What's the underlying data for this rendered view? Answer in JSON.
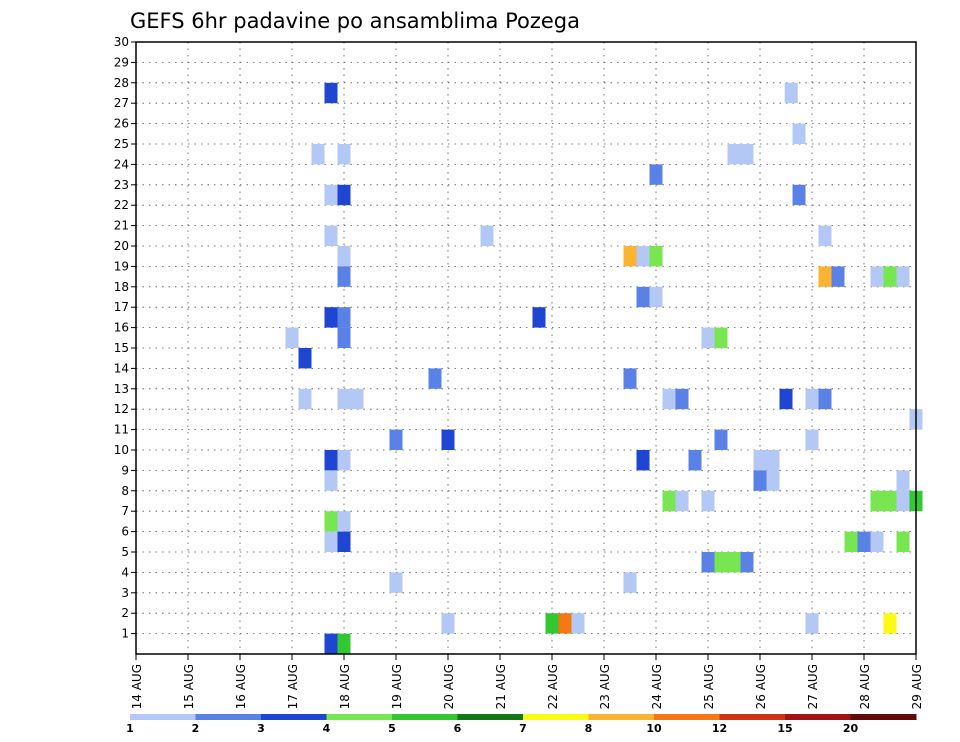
{
  "chart_data": {
    "type": "heatmap",
    "title": "GEFS 6hr padavine po ansamblima Pozega",
    "xlabel": "",
    "ylabel": "",
    "x_tick_labels": [
      "14 AUG",
      "15 AUG",
      "16 AUG",
      "17 AUG",
      "18 AUG",
      "19 AUG",
      "20 AUG",
      "21 AUG",
      "22 AUG",
      "23 AUG",
      "24 AUG",
      "25 AUG",
      "26 AUG",
      "27 AUG",
      "28 AUG",
      "29 AUG"
    ],
    "y_ticks": [
      1,
      2,
      3,
      4,
      5,
      6,
      7,
      8,
      9,
      10,
      11,
      12,
      13,
      14,
      15,
      16,
      17,
      18,
      19,
      20,
      21,
      22,
      23,
      24,
      25,
      26,
      27,
      28,
      29,
      30
    ],
    "xlim": [
      0,
      15
    ],
    "ylim": [
      0,
      30
    ],
    "grid": true,
    "legend": {
      "position": "bottom",
      "labels": [
        "1",
        "2",
        "3",
        "4",
        "5",
        "6",
        "7",
        "8",
        "10",
        "12",
        "15",
        "20"
      ],
      "colors": [
        "#b4c8f5",
        "#5a82e6",
        "#1e46d2",
        "#78e650",
        "#32c832",
        "#147814",
        "#fafa14",
        "#fab432",
        "#f57814",
        "#d23214",
        "#a01414",
        "#640a0a"
      ]
    },
    "cells": [
      {
        "x": 3.75,
        "y": 28,
        "c": 2
      },
      {
        "x": 12.6,
        "y": 28,
        "c": 0
      },
      {
        "x": 12.75,
        "y": 26,
        "c": 0
      },
      {
        "x": 3.5,
        "y": 25,
        "c": 0
      },
      {
        "x": 4.0,
        "y": 25,
        "c": 0
      },
      {
        "x": 11.5,
        "y": 25,
        "c": 0
      },
      {
        "x": 11.75,
        "y": 25,
        "c": 0
      },
      {
        "x": 10.0,
        "y": 24,
        "c": 1
      },
      {
        "x": 3.75,
        "y": 23,
        "c": 0
      },
      {
        "x": 4.0,
        "y": 23,
        "c": 2
      },
      {
        "x": 12.75,
        "y": 23,
        "c": 1
      },
      {
        "x": 3.75,
        "y": 21,
        "c": 0
      },
      {
        "x": 6.75,
        "y": 21,
        "c": 0
      },
      {
        "x": 13.25,
        "y": 21,
        "c": 0
      },
      {
        "x": 4.0,
        "y": 20,
        "c": 0
      },
      {
        "x": 9.5,
        "y": 20,
        "c": 7
      },
      {
        "x": 9.75,
        "y": 20,
        "c": 0
      },
      {
        "x": 10.0,
        "y": 20,
        "c": 3
      },
      {
        "x": 4.0,
        "y": 19,
        "c": 1
      },
      {
        "x": 13.25,
        "y": 19,
        "c": 7
      },
      {
        "x": 13.5,
        "y": 19,
        "c": 1
      },
      {
        "x": 14.25,
        "y": 19,
        "c": 0
      },
      {
        "x": 14.5,
        "y": 19,
        "c": 3
      },
      {
        "x": 14.75,
        "y": 19,
        "c": 0
      },
      {
        "x": 9.75,
        "y": 18,
        "c": 1
      },
      {
        "x": 10.0,
        "y": 18,
        "c": 0
      },
      {
        "x": 3.75,
        "y": 17,
        "c": 2
      },
      {
        "x": 4.0,
        "y": 17,
        "c": 1
      },
      {
        "x": 7.75,
        "y": 17,
        "c": 2
      },
      {
        "x": 4.0,
        "y": 16,
        "c": 1
      },
      {
        "x": 3.0,
        "y": 16,
        "c": 0
      },
      {
        "x": 11.0,
        "y": 16,
        "c": 0
      },
      {
        "x": 11.25,
        "y": 16,
        "c": 3
      },
      {
        "x": 3.25,
        "y": 15,
        "c": 2
      },
      {
        "x": 5.75,
        "y": 14,
        "c": 1
      },
      {
        "x": 9.5,
        "y": 14,
        "c": 1
      },
      {
        "x": 3.25,
        "y": 13,
        "c": 0
      },
      {
        "x": 4.0,
        "y": 13,
        "c": 0
      },
      {
        "x": 4.25,
        "y": 13,
        "c": 0
      },
      {
        "x": 10.25,
        "y": 13,
        "c": 0
      },
      {
        "x": 10.5,
        "y": 13,
        "c": 1
      },
      {
        "x": 12.5,
        "y": 13,
        "c": 2
      },
      {
        "x": 13.0,
        "y": 13,
        "c": 0
      },
      {
        "x": 13.25,
        "y": 13,
        "c": 1
      },
      {
        "x": 15.0,
        "y": 12,
        "c": 0
      },
      {
        "x": 5.0,
        "y": 11,
        "c": 1
      },
      {
        "x": 6.0,
        "y": 11,
        "c": 2
      },
      {
        "x": 11.25,
        "y": 11,
        "c": 1
      },
      {
        "x": 13.0,
        "y": 11,
        "c": 0
      },
      {
        "x": 3.75,
        "y": 10,
        "c": 2
      },
      {
        "x": 4.0,
        "y": 10,
        "c": 0
      },
      {
        "x": 9.75,
        "y": 10,
        "c": 2
      },
      {
        "x": 10.75,
        "y": 10,
        "c": 1
      },
      {
        "x": 12.0,
        "y": 10,
        "c": 0
      },
      {
        "x": 12.25,
        "y": 10,
        "c": 0
      },
      {
        "x": 3.75,
        "y": 9,
        "c": 0
      },
      {
        "x": 12.0,
        "y": 9,
        "c": 1
      },
      {
        "x": 12.25,
        "y": 9,
        "c": 0
      },
      {
        "x": 14.75,
        "y": 9,
        "c": 0
      },
      {
        "x": 10.25,
        "y": 8,
        "c": 3
      },
      {
        "x": 10.5,
        "y": 8,
        "c": 0
      },
      {
        "x": 11.0,
        "y": 8,
        "c": 0
      },
      {
        "x": 14.25,
        "y": 8,
        "c": 3
      },
      {
        "x": 14.5,
        "y": 8,
        "c": 3
      },
      {
        "x": 14.75,
        "y": 8,
        "c": 0
      },
      {
        "x": 15.0,
        "y": 8,
        "c": 4
      },
      {
        "x": 3.75,
        "y": 7,
        "c": 3
      },
      {
        "x": 4.0,
        "y": 7,
        "c": 0
      },
      {
        "x": 3.75,
        "y": 6,
        "c": 0
      },
      {
        "x": 4.0,
        "y": 6,
        "c": 2
      },
      {
        "x": 13.75,
        "y": 6,
        "c": 3
      },
      {
        "x": 14.0,
        "y": 6,
        "c": 1
      },
      {
        "x": 14.25,
        "y": 6,
        "c": 0
      },
      {
        "x": 14.75,
        "y": 6,
        "c": 3
      },
      {
        "x": 11.0,
        "y": 5,
        "c": 1
      },
      {
        "x": 11.25,
        "y": 5,
        "c": 3
      },
      {
        "x": 11.5,
        "y": 5,
        "c": 3
      },
      {
        "x": 11.75,
        "y": 5,
        "c": 1
      },
      {
        "x": 5.0,
        "y": 4,
        "c": 0
      },
      {
        "x": 9.5,
        "y": 4,
        "c": 0
      },
      {
        "x": 6.0,
        "y": 2,
        "c": 0
      },
      {
        "x": 8.0,
        "y": 2,
        "c": 4
      },
      {
        "x": 8.25,
        "y": 2,
        "c": 8
      },
      {
        "x": 8.5,
        "y": 2,
        "c": 0
      },
      {
        "x": 13.0,
        "y": 2,
        "c": 0
      },
      {
        "x": 14.5,
        "y": 2,
        "c": 6
      },
      {
        "x": 3.75,
        "y": 1,
        "c": 2
      },
      {
        "x": 4.0,
        "y": 1,
        "c": 4
      }
    ]
  }
}
